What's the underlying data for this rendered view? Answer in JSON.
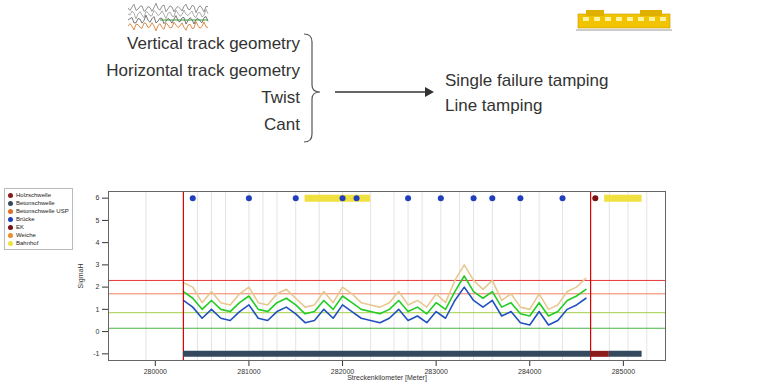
{
  "inputs": [
    "Vertical track geometry",
    "Horizontal track geometry",
    "Twist",
    "Cant"
  ],
  "outputs": [
    "Single failure tamping",
    "Line tamping"
  ],
  "chart_data": {
    "type": "line",
    "xlabel": "Streckenkilometer [Meter]",
    "ylabel": "SigmaH",
    "x": [
      280300,
      280400,
      280500,
      280600,
      280700,
      280800,
      280900,
      281000,
      281100,
      281200,
      281300,
      281400,
      281500,
      281600,
      281700,
      281800,
      281900,
      282000,
      282100,
      282200,
      282300,
      282400,
      282500,
      282600,
      282700,
      282800,
      282900,
      283000,
      283100,
      283200,
      283300,
      283400,
      283500,
      283600,
      283700,
      283800,
      283900,
      284000,
      284100,
      284200,
      284300,
      284400,
      284500,
      284600
    ],
    "series": [
      {
        "color": "#e8c890",
        "values": [
          2.2,
          2.0,
          1.3,
          1.8,
          1.3,
          1.2,
          1.7,
          2.0,
          1.3,
          1.2,
          1.7,
          1.9,
          1.5,
          1.1,
          1.2,
          1.8,
          1.3,
          2.0,
          1.7,
          1.3,
          1.2,
          1.1,
          1.3,
          1.8,
          1.2,
          1.4,
          1.1,
          1.7,
          1.3,
          2.3,
          3.0,
          2.3,
          1.9,
          2.3,
          1.4,
          1.7,
          1.1,
          1.0,
          1.7,
          1.0,
          1.2,
          1.8,
          2.0,
          2.4
        ]
      },
      {
        "color": "#22cc22",
        "values": [
          1.8,
          1.5,
          1.0,
          1.4,
          1.0,
          0.9,
          1.3,
          1.6,
          1.0,
          0.9,
          1.3,
          1.5,
          1.2,
          0.8,
          0.9,
          1.4,
          1.0,
          1.6,
          1.3,
          1.0,
          0.9,
          0.8,
          1.0,
          1.4,
          0.9,
          1.1,
          0.8,
          1.3,
          1.0,
          1.8,
          2.5,
          1.8,
          1.5,
          1.8,
          1.1,
          1.3,
          0.8,
          0.7,
          1.3,
          0.7,
          0.9,
          1.4,
          1.6,
          1.9
        ]
      },
      {
        "color": "#2050c0",
        "values": [
          1.4,
          1.1,
          0.6,
          1.0,
          0.6,
          0.5,
          0.9,
          1.2,
          0.6,
          0.5,
          0.9,
          1.1,
          0.8,
          0.4,
          0.5,
          1.0,
          0.6,
          1.2,
          0.9,
          0.6,
          0.5,
          0.4,
          0.6,
          1.0,
          0.5,
          0.7,
          0.4,
          0.9,
          0.6,
          1.4,
          2.0,
          1.4,
          1.1,
          1.4,
          0.7,
          0.9,
          0.4,
          0.3,
          0.9,
          0.3,
          0.5,
          1.0,
          1.2,
          1.5
        ]
      }
    ],
    "xlim": [
      279500,
      285450
    ],
    "ylim": [
      -1.3,
      6.3
    ],
    "xticks": [
      280000,
      281000,
      282000,
      283000,
      284000,
      285000
    ],
    "yticks": [
      -1,
      0,
      1,
      2,
      3,
      4,
      5,
      6
    ],
    "legend": "left",
    "legend_items": [
      {
        "name": "Holzschwelle",
        "color": "#8b1a1a"
      },
      {
        "name": "Betonschwelle",
        "color": "#34495e"
      },
      {
        "name": "Betonschwelle USP",
        "color": "#e07020"
      },
      {
        "name": "Brücke",
        "color": "#1f3fbf"
      },
      {
        "name": "EK",
        "color": "#7a1010"
      },
      {
        "name": "Weiche",
        "color": "#f08a30"
      },
      {
        "name": "Bahnhof",
        "color": "#f0e040"
      }
    ],
    "thresholds": [
      {
        "value": 2.3,
        "color": "#e02020"
      },
      {
        "value": 1.7,
        "color": "#f07050"
      },
      {
        "value": 0.85,
        "color": "#99cc33"
      },
      {
        "value": 0.15,
        "color": "#33aa33"
      }
    ],
    "section_limits": [
      280300,
      284650
    ],
    "section_boundaries": [
      279900,
      280450,
      280600,
      280750,
      281000,
      281150,
      281300,
      281500,
      281750,
      282000,
      282300,
      282550,
      282700,
      282850,
      283050,
      283250,
      283400,
      283600,
      283900,
      284100,
      284350,
      284850,
      285050,
      285250
    ],
    "Brücke": [
      280400,
      281000,
      281500,
      282000,
      282150,
      282700,
      283050,
      283400,
      283600,
      283900,
      284350
    ],
    "EK": [
      284700
    ],
    "Bahnhof": [
      {
        "from": 281600,
        "to": 282300
      },
      {
        "from": 284800,
        "to": 285200
      }
    ],
    "sleepers": [
      {
        "name": "Betonschwelle",
        "from": 280300,
        "to": 284650
      },
      {
        "name": "Holzschwelle",
        "from": 284650,
        "to": 284850
      },
      {
        "name": "Betonschwelle",
        "from": 284850,
        "to": 285200
      }
    ]
  }
}
